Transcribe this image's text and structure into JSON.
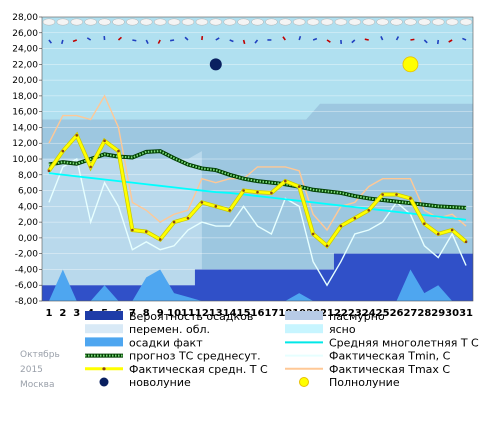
{
  "chart_data": {
    "type": "line",
    "y_ticks": [
      "28,00",
      "26,00",
      "24,00",
      "22,00",
      "20,00",
      "18,00",
      "16,00",
      "14,00",
      "12,00",
      "10,00",
      "8,00",
      "6,00",
      "4,00",
      "2,00",
      "0,00",
      "-2,00",
      "-4,00",
      "-6,00",
      "-8,00"
    ],
    "ylim": [
      -8,
      28
    ],
    "x": [
      1,
      2,
      3,
      4,
      5,
      6,
      7,
      8,
      9,
      10,
      11,
      12,
      13,
      14,
      15,
      16,
      17,
      18,
      19,
      20,
      21,
      22,
      23,
      24,
      25,
      26,
      27,
      28,
      29,
      30,
      31
    ],
    "grid": true,
    "legend_position": "bottom",
    "series": [
      {
        "name": "прогноз ТС среднесут.",
        "values": [
          9.3,
          9.6,
          9.4,
          10.0,
          10.6,
          10.3,
          10.2,
          10.9,
          11.0,
          10.1,
          9.3,
          8.8,
          8.6,
          8.0,
          7.5,
          7.2,
          7.0,
          6.8,
          6.5,
          6.1,
          5.9,
          5.7,
          5.3,
          5.0,
          4.8,
          4.6,
          4.4,
          4.2,
          4.0,
          3.9,
          3.8
        ]
      },
      {
        "name": "Фактическая средн. Т С",
        "values": [
          8.5,
          11.0,
          13.0,
          9.0,
          12.3,
          11.0,
          1.0,
          0.8,
          -0.2,
          2.0,
          2.5,
          4.5,
          4.0,
          3.5,
          6.0,
          5.8,
          5.7,
          7.2,
          6.5,
          0.5,
          -1.0,
          1.5,
          2.5,
          3.5,
          5.5,
          5.5,
          5.0,
          1.8,
          0.5,
          1.0,
          -0.5
        ]
      },
      {
        "name": "Средняя многолетняя Т С",
        "values": [
          8.2,
          8.0,
          7.8,
          7.6,
          7.4,
          7.2,
          7.0,
          6.8,
          6.6,
          6.4,
          6.2,
          6.0,
          5.8,
          5.7,
          5.5,
          5.3,
          5.1,
          4.9,
          4.7,
          4.5,
          4.3,
          4.1,
          3.9,
          3.7,
          3.5,
          3.3,
          3.1,
          2.9,
          2.7,
          2.5,
          2.3
        ]
      },
      {
        "name": "Фактическая Tmin, C",
        "values": [
          4.5,
          9.0,
          10.0,
          2.0,
          7.0,
          4.0,
          -1.5,
          -0.5,
          -1.5,
          -1.0,
          1.0,
          2.0,
          1.5,
          1.5,
          4.0,
          1.5,
          0.5,
          5.0,
          4.0,
          -3.0,
          -6.0,
          -3.0,
          0.5,
          1.0,
          2.0,
          4.5,
          3.0,
          -1.0,
          -2.5,
          0.5,
          -3.5
        ]
      },
      {
        "name": "Фактическая Tmax, C",
        "values": [
          12.0,
          15.5,
          15.5,
          15.0,
          18.0,
          14.0,
          4.5,
          3.5,
          2.0,
          3.0,
          3.5,
          7.5,
          7.0,
          7.5,
          7.5,
          9.0,
          9.0,
          9.0,
          8.5,
          3.0,
          1.0,
          4.0,
          4.5,
          6.5,
          7.5,
          7.5,
          7.5,
          3.5,
          2.5,
          3.0,
          1.5
        ]
      },
      {
        "name": "пасмурно",
        "values": [
          15,
          15,
          15,
          15,
          15,
          15,
          15,
          15,
          15,
          15,
          15,
          15,
          15,
          15,
          15,
          15,
          15,
          15,
          15,
          15,
          15,
          15,
          15,
          15,
          15,
          15,
          15,
          15,
          15,
          15,
          15
        ]
      },
      {
        "name": "Вероятность осадков",
        "values": [
          -6,
          -6,
          -6,
          -6,
          -6,
          -6,
          -6,
          -6,
          -6,
          -6,
          -6,
          -4,
          -4,
          -4,
          -4,
          -4,
          -4,
          -4,
          -4,
          -4,
          -4,
          -2,
          -2,
          -2,
          -2,
          -2,
          -2,
          -2,
          -2,
          -2,
          -2
        ]
      },
      {
        "name": "осадки факт",
        "values": [
          -8,
          -4,
          -8,
          -8,
          -6,
          -8,
          -8,
          -5,
          -4,
          -7,
          -7.5,
          -8,
          -8,
          -8,
          -8,
          -8,
          -8,
          -8,
          -7,
          -8,
          -8,
          -8,
          -8,
          -8,
          -8,
          -8,
          -4,
          -7,
          -6,
          -8,
          -8
        ]
      }
    ],
    "moon_events": [
      {
        "name": "новолуние",
        "day": 13,
        "y": 22
      },
      {
        "name": "Полнолуние",
        "day": 27,
        "y": 22
      }
    ],
    "colors": {
      "sky": "#b0e0f0",
      "overcast": "#9dc7e0",
      "precip_prob": "#3050c8",
      "precip_fact": "#4ea6f0",
      "forecast": "#008000",
      "actual_mean": "#ffff00",
      "normal_mean": "#00ffff",
      "tmin": "#e6ffff",
      "tmax": "#ffc896",
      "new_moon": "#0a2060",
      "full_moon": "#ffff00"
    }
  },
  "legend": [
    {
      "label": "Вероятность осадков",
      "swatch": "rect",
      "color": "#1e3ca8"
    },
    {
      "label": "пасмурно",
      "swatch": "rect",
      "color": "#b7cbe6"
    },
    {
      "label": "перемен. обл.",
      "swatch": "rect",
      "color": "#d8e9f6"
    },
    {
      "label": "ясно",
      "swatch": "rect",
      "color": "#c7f5ff"
    },
    {
      "label": "осадки факт",
      "swatch": "rect",
      "color": "#4ea6f0"
    },
    {
      "label": "Средняя многолетняя Т С",
      "swatch": "line",
      "color": "#00e8e8"
    },
    {
      "label": "прогноз ТС среднесут.",
      "swatch": "dotted",
      "color": "#008000"
    },
    {
      "label": "Фактическая Tmin, C",
      "swatch": "line",
      "color": "#e6ffff"
    },
    {
      "label": "Фактическая средн. Т С",
      "swatch": "yellow",
      "color": "#ffff00"
    },
    {
      "label": "Фактическая Tmax C",
      "swatch": "line",
      "color": "#ffc896"
    },
    {
      "label": "новолуние",
      "swatch": "dot",
      "color": "#0a2060"
    },
    {
      "label": "Полнолуние",
      "swatch": "dot",
      "color": "#ffff00"
    }
  ],
  "side_labels": {
    "month": "Октябрь",
    "year": "2015",
    "city": "Москва"
  }
}
